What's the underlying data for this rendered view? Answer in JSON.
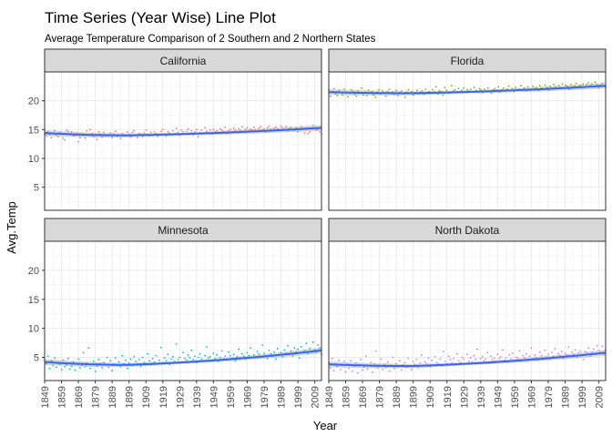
{
  "chart_data": {
    "type": "scatter",
    "title": "Time Series (Year Wise) Line Plot",
    "subtitle": "Average Temperature Comparison of 2 Southern and 2 Northern States",
    "xlabel": "Year",
    "ylabel": "Avg.Temp",
    "xlim": [
      1849,
      2013
    ],
    "ylim": [
      1,
      25
    ],
    "x_ticks": [
      1849,
      1859,
      1869,
      1879,
      1889,
      1899,
      1909,
      1919,
      1929,
      1939,
      1949,
      1959,
      1969,
      1979,
      1989,
      1999,
      2009
    ],
    "y_ticks": [
      5,
      10,
      15,
      20
    ],
    "grid": true,
    "trend": "smoothed line with confidence band",
    "trend_color": "#3366ff",
    "panels": [
      {
        "name": "California",
        "color": "#f8766d",
        "trend_start": 14.4,
        "trend_min": 14.0,
        "trend_end": 15.3,
        "values": [
          14.2,
          13.9,
          14.6,
          14.1,
          13.6,
          14.4,
          14.8,
          14.0,
          13.8,
          14.5,
          14.3,
          13.5,
          13.2,
          14.9,
          14.7,
          14.1,
          14.6,
          13.9,
          14.0,
          14.3,
          12.9,
          13.6,
          14.2,
          14.0,
          13.5,
          14.8,
          14.1,
          15.0,
          14.3,
          13.8,
          14.0,
          13.3,
          14.6,
          14.2,
          13.7,
          14.5,
          14.0,
          13.9,
          14.1,
          14.4,
          13.6,
          14.2,
          14.7,
          13.8,
          14.0,
          13.5,
          14.3,
          14.1,
          13.9,
          14.6,
          14.2,
          13.7,
          14.5,
          14.8,
          14.0,
          13.6,
          14.3,
          14.1,
          13.8,
          14.4,
          14.9,
          14.2,
          13.9,
          14.5,
          14.0,
          14.6,
          14.3,
          13.8,
          14.1,
          14.7,
          15.0,
          14.2,
          13.9,
          14.6,
          14.4,
          14.1,
          14.8,
          14.3,
          15.2,
          14.5,
          14.0,
          14.9,
          14.6,
          14.2,
          14.7,
          15.1,
          14.4,
          14.8,
          14.1,
          14.6,
          15.0,
          13.8,
          14.5,
          14.9,
          14.3,
          15.3,
          14.7,
          14.4,
          14.9,
          14.2,
          15.0,
          14.6,
          14.8,
          14.5,
          15.1,
          14.9,
          14.7,
          15.4,
          14.3,
          14.8,
          15.0,
          14.6,
          15.2,
          14.9,
          14.5,
          15.1,
          14.8,
          15.5,
          14.7,
          15.0,
          15.3,
          14.8,
          15.1,
          14.9,
          15.4,
          15.0,
          14.7,
          15.2,
          15.5,
          14.9,
          15.1,
          14.6,
          15.3,
          15.6,
          15.0,
          14.8,
          15.2,
          15.4,
          15.1,
          14.9,
          15.6,
          15.3,
          15.0,
          15.5,
          14.8,
          15.2,
          15.4,
          15.0,
          14.9,
          15.3,
          14.6,
          15.1,
          15.5,
          15.2,
          14.4,
          15.0,
          14.3,
          14.6,
          15.1,
          15.7,
          15.3,
          14.9,
          15.0,
          14.6,
          14.2
        ],
        "name_values_note": ""
      },
      {
        "name": "Florida",
        "color": "#7cae00",
        "trend_start": 21.5,
        "trend_min": 21.3,
        "trend_end": 22.6,
        "values": [
          21.9,
          20.8,
          21.6,
          22.1,
          21.2,
          20.9,
          21.8,
          21.4,
          21.0,
          22.0,
          21.5,
          20.7,
          21.3,
          21.9,
          21.6,
          21.1,
          20.8,
          21.7,
          21.4,
          22.2,
          21.0,
          21.5,
          20.9,
          21.8,
          21.3,
          21.6,
          21.0,
          20.6,
          21.5,
          21.9,
          21.2,
          21.7,
          21.4,
          20.8,
          21.6,
          22.0,
          21.3,
          21.5,
          21.1,
          21.8,
          20.9,
          21.4,
          21.7,
          21.2,
          20.6,
          21.5,
          21.9,
          21.3,
          21.6,
          21.0,
          21.4,
          21.8,
          21.2,
          21.5,
          21.7,
          21.1,
          22.0,
          21.4,
          21.6,
          21.3,
          21.9,
          21.5,
          22.4,
          21.2,
          21.7,
          21.6,
          21.0,
          22.3,
          21.8,
          21.5,
          21.3,
          22.6,
          21.7,
          21.9,
          21.4,
          22.1,
          21.6,
          21.8,
          22.2,
          21.5,
          21.9,
          21.7,
          22.0,
          21.6,
          22.3,
          21.8,
          21.5,
          22.1,
          21.9,
          21.4,
          22.0,
          21.7,
          22.2,
          21.6,
          21.3,
          21.9,
          22.1,
          21.8,
          22.4,
          21.5,
          21.9,
          22.2,
          21.7,
          22.0,
          22.5,
          21.8,
          22.1,
          21.6,
          22.3,
          21.9,
          22.0,
          22.6,
          21.8,
          22.2,
          21.7,
          22.4,
          22.0,
          21.9,
          22.5,
          22.1,
          22.3,
          21.8,
          22.6,
          22.2,
          22.0,
          22.7,
          22.3,
          21.9,
          22.5,
          22.2,
          22.8,
          22.4,
          22.1,
          22.6,
          22.3,
          22.9,
          22.2,
          22.7,
          22.5,
          22.0,
          22.8,
          22.4,
          22.6,
          23.0,
          22.3,
          22.7,
          22.5,
          22.9,
          22.4,
          22.8,
          23.1,
          22.6,
          22.9,
          22.5,
          23.2,
          22.8,
          22.3,
          22.7,
          23.0,
          22.6,
          22.4
        ]
      },
      {
        "name": "Minnesota",
        "color": "#00bfc4",
        "trend_start": 4.2,
        "trend_min": 3.7,
        "trend_end": 6.2,
        "values": [
          4.6,
          3.9,
          5.2,
          3.1,
          4.4,
          3.6,
          4.9,
          3.3,
          4.1,
          3.8,
          2.9,
          4.5,
          3.4,
          3.7,
          4.8,
          3.0,
          3.5,
          4.2,
          2.8,
          3.9,
          4.7,
          3.2,
          3.6,
          5.8,
          3.4,
          4.0,
          6.6,
          3.1,
          3.8,
          4.3,
          2.6,
          3.5,
          4.6,
          3.9,
          3.2,
          4.1,
          3.7,
          5.0,
          3.3,
          4.4,
          2.7,
          3.8,
          4.9,
          3.6,
          4.2,
          3.4,
          5.3,
          3.9,
          4.5,
          3.1,
          4.0,
          4.7,
          3.6,
          5.1,
          4.3,
          3.8,
          4.6,
          3.5,
          5.0,
          4.1,
          3.9,
          5.6,
          4.4,
          3.7,
          4.8,
          4.2,
          5.3,
          3.9,
          4.5,
          6.7,
          4.1,
          4.9,
          4.4,
          5.5,
          3.8,
          4.7,
          5.1,
          4.3,
          7.3,
          4.6,
          5.0,
          4.2,
          5.8,
          4.8,
          4.5,
          5.4,
          4.9,
          6.2,
          4.6,
          5.2,
          4.1,
          5.0,
          5.6,
          4.7,
          4.4,
          5.3,
          6.8,
          4.9,
          5.1,
          4.5,
          5.7,
          4.8,
          5.4,
          4.3,
          5.0,
          6.1,
          4.7,
          5.2,
          4.6,
          5.9,
          5.3,
          4.8,
          5.5,
          4.4,
          5.1,
          6.4,
          4.9,
          5.6,
          5.2,
          4.7,
          5.8,
          5.3,
          6.6,
          5.0,
          5.4,
          4.9,
          6.0,
          5.5,
          5.1,
          7.1,
          5.7,
          5.3,
          4.8,
          6.2,
          5.6,
          5.2,
          5.9,
          4.7,
          6.5,
          5.4,
          5.8,
          5.1,
          6.3,
          5.7,
          7.0,
          5.5,
          6.1,
          5.2,
          6.6,
          5.9,
          6.4,
          4.9,
          6.8,
          5.8,
          6.2,
          7.4,
          5.6,
          6.5,
          6.0,
          7.6,
          6.3,
          5.9,
          7.1,
          6.6,
          5.5
        ]
      },
      {
        "name": "North Dakota",
        "color": "#c77cff",
        "trend_start": 3.8,
        "trend_min": 3.5,
        "trend_end": 5.8,
        "values": [
          4.1,
          3.2,
          4.8,
          2.7,
          3.9,
          3.4,
          4.5,
          2.9,
          3.6,
          4.3,
          2.5,
          3.8,
          3.1,
          4.4,
          2.6,
          3.5,
          4.0,
          2.3,
          3.7,
          4.6,
          2.8,
          3.3,
          5.2,
          3.0,
          3.6,
          4.1,
          2.4,
          3.9,
          6.1,
          3.2,
          3.5,
          4.7,
          2.9,
          3.8,
          3.3,
          4.2,
          2.6,
          3.6,
          5.0,
          3.1,
          3.9,
          3.4,
          4.4,
          2.8,
          3.7,
          4.1,
          3.3,
          4.8,
          3.5,
          2.9,
          4.3,
          3.8,
          4.6,
          3.2,
          4.0,
          5.4,
          3.6,
          4.2,
          3.9,
          4.9,
          3.4,
          4.5,
          3.7,
          5.1,
          4.1,
          3.8,
          4.7,
          3.5,
          6.0,
          4.3,
          3.9,
          5.2,
          4.6,
          4.0,
          4.8,
          3.7,
          5.6,
          4.4,
          4.1,
          5.0,
          4.7,
          3.9,
          5.5,
          4.3,
          4.9,
          4.2,
          5.3,
          4.6,
          6.4,
          4.1,
          4.8,
          5.1,
          4.4,
          4.7,
          5.8,
          4.0,
          5.2,
          4.6,
          4.9,
          4.3,
          5.5,
          4.8,
          5.1,
          6.3,
          4.5,
          4.9,
          4.2,
          5.4,
          4.7,
          5.7,
          4.4,
          5.0,
          4.8,
          6.1,
          4.6,
          5.3,
          4.9,
          5.6,
          4.5,
          5.2,
          6.6,
          4.8,
          5.4,
          5.0,
          4.6,
          5.9,
          5.3,
          4.9,
          6.2,
          5.1,
          5.5,
          4.7,
          5.8,
          5.2,
          6.5,
          4.9,
          5.6,
          5.3,
          6.0,
          4.8,
          5.7,
          5.4,
          6.8,
          5.1,
          5.9,
          5.5,
          6.3,
          5.0,
          5.8,
          6.1,
          5.4,
          4.6,
          6.0,
          5.7,
          6.6,
          5.2,
          5.9,
          6.4,
          5.6,
          7.0,
          6.2,
          5.8,
          6.9,
          5.5,
          6.3
        ]
      }
    ]
  }
}
